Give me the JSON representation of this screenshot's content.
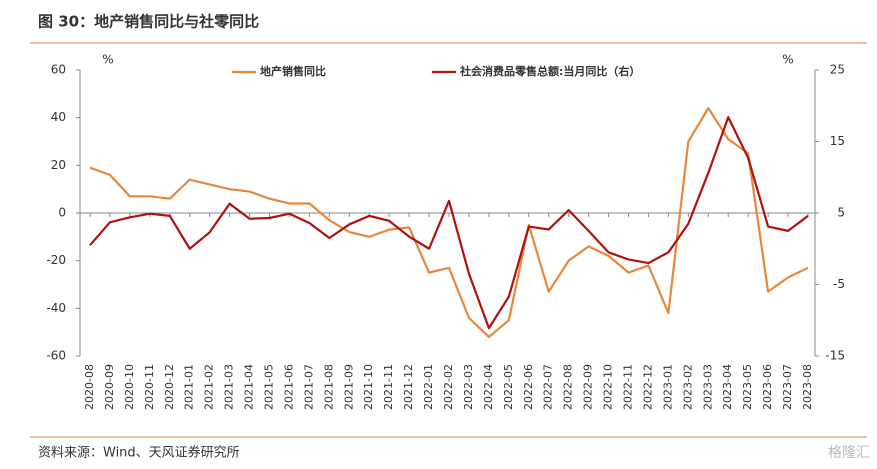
{
  "title": "图 30：地产销售同比与社零同比",
  "source": "资料来源：Wind、天风证券研究所",
  "watermark": "格隆汇",
  "chart_data": {
    "type": "line",
    "y_unit": "%",
    "y2_unit": "%",
    "categories": [
      "2020-08",
      "2020-09",
      "2020-10",
      "2020-11",
      "2020-12",
      "2021-01",
      "2021-02",
      "2021-03",
      "2021-04",
      "2021-05",
      "2021-06",
      "2021-07",
      "2021-08",
      "2021-09",
      "2021-10",
      "2021-11",
      "2021-12",
      "2022-01",
      "2022-02",
      "2022-03",
      "2022-04",
      "2022-05",
      "2022-06",
      "2022-07",
      "2022-08",
      "2022-09",
      "2022-10",
      "2022-11",
      "2022-12",
      "2023-01",
      "2023-02",
      "2023-03",
      "2023-04",
      "2023-05",
      "2023-06",
      "2023-07",
      "2023-08"
    ],
    "series": [
      {
        "name": "地产销售同比",
        "color": "#e8873a",
        "axis": "y",
        "values": [
          19,
          16,
          7,
          7,
          6,
          14,
          12,
          10,
          9,
          6,
          4,
          4,
          -3,
          -8,
          -10,
          -7,
          -6,
          -25,
          -23,
          -44,
          -52,
          -45,
          -5,
          -33,
          -20,
          -14,
          -18,
          -25,
          -22,
          -42,
          30,
          44,
          31,
          25,
          -33,
          -27,
          -23
        ]
      },
      {
        "name": "社会消费品零售总额:当月同比（右）",
        "color": "#b01010",
        "axis": "y2",
        "values": [
          0.5,
          3.7,
          4.4,
          4.9,
          4.6,
          0,
          2.3,
          6.3,
          4.2,
          4.3,
          4.9,
          3.6,
          1.5,
          3.4,
          4.6,
          3.9,
          1.7,
          0,
          6.7,
          -3.5,
          -11.1,
          -6.7,
          3.1,
          2.7,
          5.4,
          2.5,
          -0.5,
          -1.5,
          -2.0,
          -0.5,
          3.5,
          10.6,
          18.4,
          12.7,
          3.1,
          2.5,
          4.6
        ]
      }
    ],
    "ylim": [
      -60,
      60
    ],
    "yticks": [
      -60,
      -40,
      -20,
      0,
      20,
      40,
      60
    ],
    "y2lim": [
      -15,
      25
    ],
    "y2ticks": [
      -15,
      -5,
      5,
      15,
      25
    ],
    "legend": "top"
  }
}
